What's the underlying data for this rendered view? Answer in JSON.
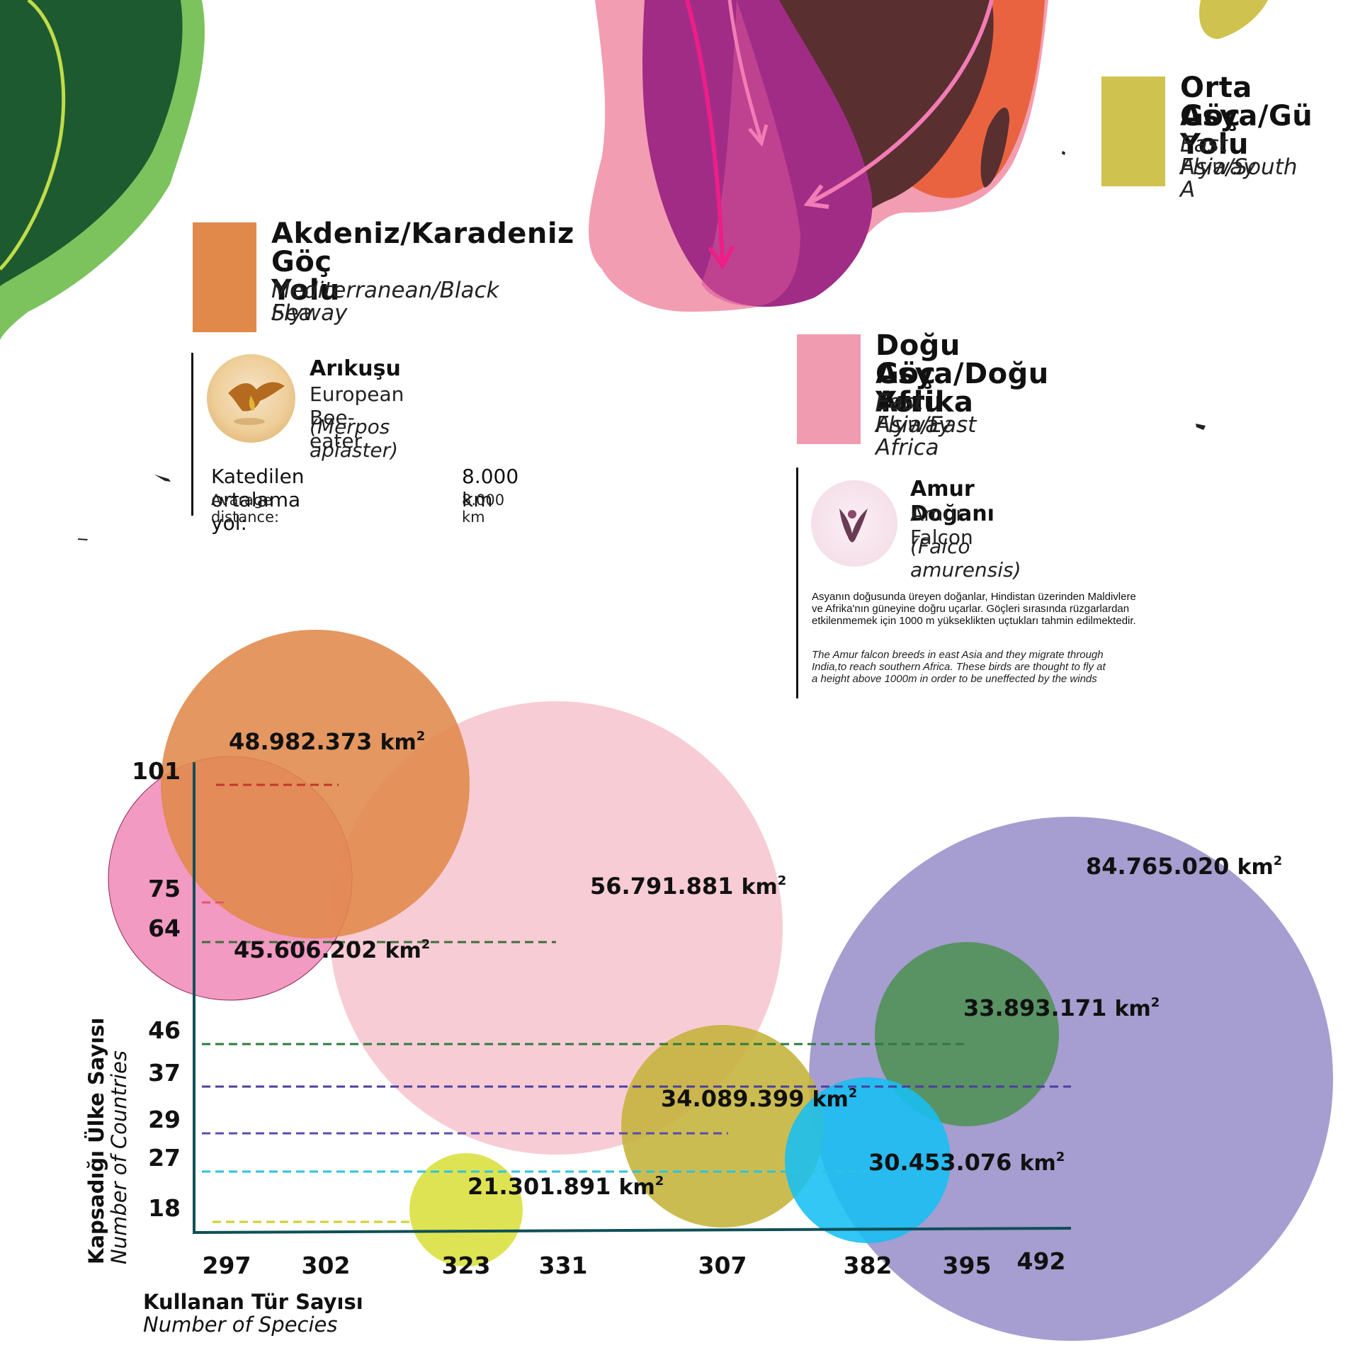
{
  "colors": {
    "mediterranean": "#e0894a",
    "east_africa": "#f19bb0",
    "central_asia": "#cfc24f",
    "axis": "#0f4f57"
  },
  "legends": {
    "mediterranean": {
      "title_line1": "Akdeniz/Karadeniz",
      "title_line2": "Göç Yolu",
      "sub_line1": "Mediterranean/Black Sea",
      "sub_line2": "Flyway"
    },
    "east_africa": {
      "title_line1": "Doğu Asya/Doğu Afrika",
      "title_line2": "Göç Yolu",
      "sub_line1": "East Asia/East Africa",
      "sub_line2": "Flyway"
    },
    "central_asia": {
      "title_line1": "Orta Asya/Gü",
      "title_line2": "Göç Yolu",
      "sub_line1": "East Asia/South A",
      "sub_line2": "Flyway"
    }
  },
  "birds": {
    "bee_eater": {
      "name_tr": "Arıkuşu",
      "name_en": "European Bee-eater",
      "scientific": "(Merpos apiaster)",
      "photo_icon": "bee-eater-photo",
      "distance_label_tr": "Katedilen ortalama yol:",
      "distance_value_tr": "8.000 km",
      "distance_label_en": "Avarage distance:",
      "distance_value_en": "8.000 km"
    },
    "amur_falcon": {
      "name_tr": "Amur Doğanı",
      "name_en": "Amur Falcon",
      "scientific": "(Falco amurensis)",
      "photo_icon": "amur-falcon-photo",
      "description_tr": "Asyanın doğusunda üreyen doğanlar, Hindistan üzerinden Maldivlere ve Afrika'nın güneyine doğru uçarlar. Göçleri sırasında rüzgarlardan etkilenmemek için 1000 m yükseklikten uçtukları tahmin edilmektedir.",
      "description_en": "The Amur falcon breeds in east Asia and they migrate through India,to reach southern Africa. These birds are thought to fly at a height above 1000m in order to be uneffected by the winds"
    }
  },
  "chart_data": {
    "type": "scatter",
    "encoding": "bubble",
    "xlabel": "Kullanan Tür Sayısı",
    "xlabel_en": "Number of Species",
    "ylabel": "Kapsadığı Ülke Sayısı",
    "ylabel_en": "Number of Countries",
    "x_ticks": [
      "297",
      "302",
      "323",
      "331",
      "307",
      "382",
      "395",
      "492"
    ],
    "y_ticks": [
      "101",
      "75",
      "64",
      "46",
      "37",
      "29",
      "27",
      "18"
    ],
    "area_unit": "km",
    "area_exponent": "2",
    "points": [
      {
        "species": 302,
        "countries": 101,
        "area_km2": 48982373,
        "label": "48.982.373",
        "color": "#e0894a",
        "guide_color": "#c0392b"
      },
      {
        "species": 297,
        "countries": 75,
        "area_km2": 45606202,
        "label": "45.606.202",
        "color": "#f08cba",
        "guide_color": "#e0566f"
      },
      {
        "species": 331,
        "countries": 64,
        "area_km2": 56791881,
        "label": "56.791.881",
        "color": "#f7c5cf",
        "guide_color": "#3f6d3a"
      },
      {
        "species": 395,
        "countries": 46,
        "area_km2": 33893171,
        "label": "33.893.171",
        "color": "#4f9153",
        "guide_color": "#2f7a3f"
      },
      {
        "species": 492,
        "countries": 37,
        "area_km2": 84765020,
        "label": "84.765.020",
        "color": "#9a8fca",
        "guide_color": "#4b3fa0"
      },
      {
        "species": 307,
        "countries": 29,
        "area_km2": 34089399,
        "label": "34.089.399",
        "color": "#c4b33a",
        "guide_color": "#5a4db0"
      },
      {
        "species": 382,
        "countries": 27,
        "area_km2": 30453076,
        "label": "30.453.076",
        "color": "#16bff2",
        "guide_color": "#2cc3dd"
      },
      {
        "species": 323,
        "countries": 18,
        "area_km2": 21301891,
        "label": "21.301.891",
        "color": "#d9df3c",
        "guide_color": "#cfd02a"
      }
    ]
  }
}
